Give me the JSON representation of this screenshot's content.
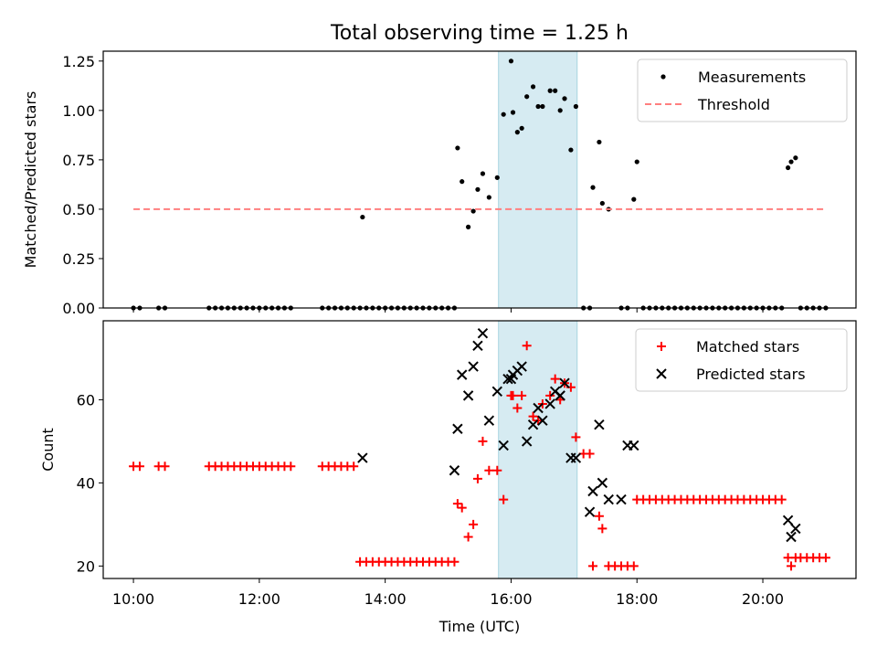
{
  "title": "Total observing time = 1.25 h",
  "chart_data": [
    {
      "type": "scatter",
      "panel": "top",
      "ylabel": "Matched/Predicted stars",
      "xlim": [
        10.0,
        21.0
      ],
      "ylim": [
        0,
        1.3
      ],
      "yticks": [
        0,
        0.25,
        0.5,
        0.75,
        1.0,
        1.25
      ],
      "ytick_labels": [
        "0.00",
        "0.25",
        "0.50",
        "0.75",
        "1.00",
        "1.25"
      ],
      "highlight_span": [
        15.8,
        17.05
      ],
      "legend": {
        "placement": "top-right"
      },
      "series": [
        {
          "name": "Measurements",
          "marker": "dot",
          "color": "#000000",
          "x": [
            10.0,
            10.1,
            10.4,
            10.5,
            11.2,
            11.3,
            11.4,
            11.5,
            11.6,
            11.7,
            11.8,
            11.9,
            12.0,
            12.1,
            12.2,
            12.3,
            12.4,
            12.5,
            13.0,
            13.1,
            13.2,
            13.3,
            13.4,
            13.5,
            13.6,
            13.64,
            13.7,
            13.8,
            13.9,
            14.0,
            14.1,
            14.2,
            14.3,
            14.4,
            14.5,
            14.6,
            14.7,
            14.8,
            14.9,
            15.0,
            15.1,
            15.15,
            15.22,
            15.32,
            15.4,
            15.47,
            15.55,
            15.65,
            15.78,
            15.88,
            16.0,
            16.03,
            16.1,
            16.17,
            16.25,
            16.35,
            16.43,
            16.5,
            16.62,
            16.7,
            16.78,
            16.85,
            16.95,
            17.03,
            17.15,
            17.25,
            17.3,
            17.4,
            17.45,
            17.55,
            17.75,
            17.85,
            17.95,
            18.0,
            18.1,
            18.2,
            18.3,
            18.4,
            18.5,
            18.6,
            18.7,
            18.8,
            18.9,
            19.0,
            19.1,
            19.2,
            19.3,
            19.4,
            19.5,
            19.6,
            19.7,
            19.8,
            19.9,
            20.0,
            20.1,
            20.2,
            20.3,
            20.4,
            20.45,
            20.52,
            20.6,
            20.7,
            20.8,
            20.9,
            21.0
          ],
          "y": [
            0,
            0,
            0,
            0,
            0,
            0,
            0,
            0,
            0,
            0,
            0,
            0,
            0,
            0,
            0,
            0,
            0,
            0,
            0,
            0,
            0,
            0,
            0,
            0,
            0,
            0.46,
            0,
            0,
            0,
            0,
            0,
            0,
            0,
            0,
            0,
            0,
            0,
            0,
            0,
            0,
            0,
            0.81,
            0.64,
            0.41,
            0.49,
            0.6,
            0.68,
            0.56,
            0.66,
            0.98,
            1.25,
            0.99,
            0.89,
            0.91,
            1.07,
            1.12,
            1.02,
            1.02,
            1.1,
            1.1,
            1.0,
            1.06,
            0.8,
            1.02,
            0,
            0,
            0.61,
            0.84,
            0.53,
            0.5,
            0,
            0,
            0.55,
            0.74,
            0,
            0,
            0,
            0,
            0,
            0,
            0,
            0,
            0,
            0,
            0,
            0,
            0,
            0,
            0,
            0,
            0,
            0,
            0,
            0,
            0,
            0,
            0,
            0.71,
            0.74,
            0.76,
            0,
            0,
            0,
            0,
            0
          ]
        },
        {
          "name": "Threshold",
          "marker": "dashed-line",
          "color": "#ff7f7f",
          "x": [
            10.0,
            21.0
          ],
          "y": [
            0.5,
            0.5
          ]
        }
      ]
    },
    {
      "type": "scatter",
      "panel": "bottom",
      "xlabel": "Time (UTC)",
      "ylabel": "Count",
      "xlim": [
        9.52,
        21.48
      ],
      "ylim": [
        17,
        79
      ],
      "yticks": [
        20,
        40,
        60
      ],
      "xticks": [
        10,
        12,
        14,
        16,
        18,
        20
      ],
      "xtick_labels": [
        "10:00",
        "12:00",
        "14:00",
        "16:00",
        "18:00",
        "20:00"
      ],
      "highlight_span": [
        15.8,
        17.05
      ],
      "legend": {
        "placement": "top-right"
      },
      "series": [
        {
          "name": "Matched stars",
          "marker": "plus",
          "color": "#ff0000",
          "x": [
            10.0,
            10.1,
            10.4,
            10.5,
            11.2,
            11.3,
            11.4,
            11.5,
            11.6,
            11.7,
            11.8,
            11.9,
            12.0,
            12.1,
            12.2,
            12.3,
            12.4,
            12.5,
            13.0,
            13.1,
            13.2,
            13.3,
            13.4,
            13.5,
            13.6,
            13.7,
            13.8,
            13.9,
            14.0,
            14.1,
            14.2,
            14.3,
            14.4,
            14.5,
            14.6,
            14.7,
            14.8,
            14.9,
            15.0,
            15.1,
            15.15,
            15.22,
            15.32,
            15.4,
            15.47,
            15.55,
            15.65,
            15.78,
            15.88,
            16.0,
            16.03,
            16.1,
            16.17,
            16.25,
            16.35,
            16.43,
            16.5,
            16.62,
            16.7,
            16.78,
            16.85,
            16.95,
            17.03,
            17.15,
            17.25,
            17.3,
            17.4,
            17.45,
            17.55,
            17.65,
            17.75,
            17.85,
            17.95,
            18.0,
            18.1,
            18.2,
            18.3,
            18.4,
            18.5,
            18.6,
            18.7,
            18.8,
            18.9,
            19.0,
            19.1,
            19.2,
            19.3,
            19.4,
            19.5,
            19.6,
            19.7,
            19.8,
            19.9,
            20.0,
            20.1,
            20.2,
            20.3,
            20.4,
            20.45,
            20.52,
            20.6,
            20.7,
            20.8,
            20.9,
            21.0
          ],
          "y": [
            44,
            44,
            44,
            44,
            44,
            44,
            44,
            44,
            44,
            44,
            44,
            44,
            44,
            44,
            44,
            44,
            44,
            44,
            44,
            44,
            44,
            44,
            44,
            44,
            21,
            21,
            21,
            21,
            21,
            21,
            21,
            21,
            21,
            21,
            21,
            21,
            21,
            21,
            21,
            21,
            35,
            34,
            27,
            30,
            41,
            50,
            43,
            43,
            36,
            61,
            61,
            58,
            61,
            73,
            56,
            55,
            59,
            61,
            65,
            60,
            64,
            63,
            51,
            47,
            47,
            20,
            32,
            29,
            20,
            20,
            20,
            20,
            20,
            36,
            36,
            36,
            36,
            36,
            36,
            36,
            36,
            36,
            36,
            36,
            36,
            36,
            36,
            36,
            36,
            36,
            36,
            36,
            36,
            36,
            36,
            36,
            36,
            22,
            20,
            22,
            22,
            22,
            22,
            22,
            22
          ]
        },
        {
          "name": "Predicted stars",
          "marker": "x",
          "color": "#000000",
          "x": [
            13.64,
            15.1,
            15.15,
            15.22,
            15.32,
            15.4,
            15.47,
            15.55,
            15.65,
            15.78,
            15.88,
            15.95,
            16.0,
            16.03,
            16.1,
            16.17,
            16.25,
            16.35,
            16.43,
            16.5,
            16.62,
            16.7,
            16.78,
            16.85,
            16.95,
            17.03,
            17.25,
            17.3,
            17.4,
            17.45,
            17.55,
            17.75,
            17.85,
            17.95,
            20.4,
            20.45,
            20.52
          ],
          "y": [
            46,
            43,
            53,
            66,
            61,
            68,
            73,
            76,
            55,
            62,
            49,
            65,
            65,
            66,
            67,
            68,
            50,
            54,
            58,
            55,
            59,
            62,
            61,
            64,
            46,
            46,
            33,
            38,
            54,
            40,
            36,
            36,
            49,
            49,
            31,
            27,
            29
          ]
        }
      ]
    }
  ]
}
